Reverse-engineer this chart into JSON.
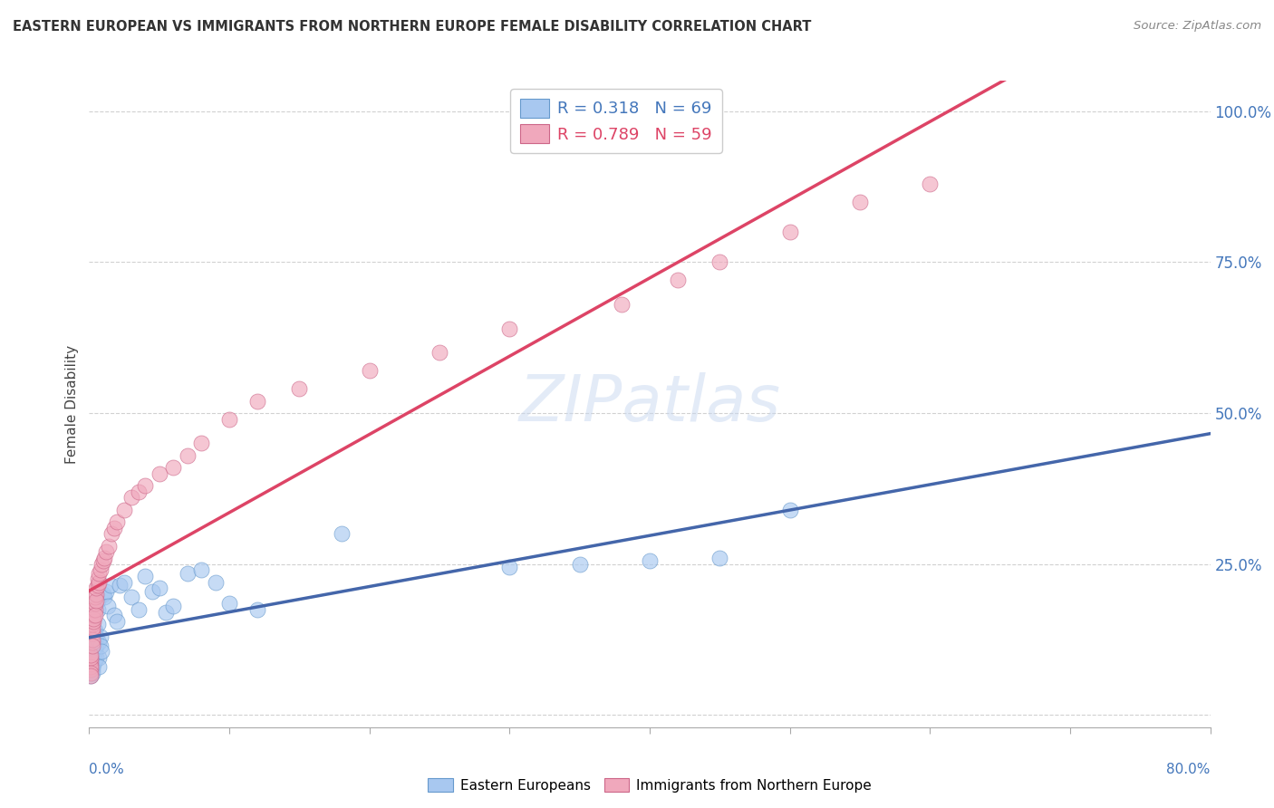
{
  "title": "EASTERN EUROPEAN VS IMMIGRANTS FROM NORTHERN EUROPE FEMALE DISABILITY CORRELATION CHART",
  "source": "Source: ZipAtlas.com",
  "ylabel": "Female Disability",
  "ytick_vals": [
    0.0,
    0.25,
    0.5,
    0.75,
    1.0
  ],
  "ytick_labels": [
    "",
    "25.0%",
    "50.0%",
    "75.0%",
    "100.0%"
  ],
  "xlim": [
    0.0,
    0.8
  ],
  "ylim": [
    -0.02,
    1.05
  ],
  "blue_color": "#A8C8F0",
  "pink_color": "#F0A8BC",
  "blue_edge_color": "#6699CC",
  "pink_edge_color": "#CC6688",
  "blue_line_color": "#4466AA",
  "pink_line_color": "#DD4466",
  "watermark": "ZIPatlas",
  "watermark_color": "#C8D8F0",
  "legend_blue_r": "R = 0.318",
  "legend_blue_n": "N = 69",
  "legend_pink_r": "R = 0.789",
  "legend_pink_n": "N = 59",
  "blue_R": 0.318,
  "pink_R": 0.789,
  "blue_N": 69,
  "pink_N": 59,
  "blue_scatter_x": [
    0.001,
    0.001,
    0.001,
    0.001,
    0.001,
    0.001,
    0.001,
    0.001,
    0.001,
    0.001,
    0.002,
    0.002,
    0.002,
    0.002,
    0.002,
    0.002,
    0.002,
    0.002,
    0.002,
    0.002,
    0.003,
    0.003,
    0.003,
    0.003,
    0.003,
    0.004,
    0.004,
    0.004,
    0.004,
    0.004,
    0.005,
    0.005,
    0.005,
    0.006,
    0.006,
    0.006,
    0.007,
    0.007,
    0.007,
    0.008,
    0.008,
    0.009,
    0.01,
    0.011,
    0.012,
    0.013,
    0.015,
    0.018,
    0.02,
    0.022,
    0.025,
    0.03,
    0.035,
    0.04,
    0.045,
    0.05,
    0.055,
    0.06,
    0.07,
    0.08,
    0.09,
    0.1,
    0.12,
    0.18,
    0.3,
    0.35,
    0.4,
    0.45,
    0.5
  ],
  "blue_scatter_y": [
    0.08,
    0.09,
    0.1,
    0.085,
    0.095,
    0.075,
    0.105,
    0.07,
    0.11,
    0.065,
    0.09,
    0.1,
    0.08,
    0.11,
    0.095,
    0.085,
    0.075,
    0.105,
    0.115,
    0.07,
    0.095,
    0.11,
    0.13,
    0.12,
    0.085,
    0.125,
    0.14,
    0.105,
    0.115,
    0.09,
    0.13,
    0.115,
    0.095,
    0.15,
    0.175,
    0.19,
    0.12,
    0.095,
    0.08,
    0.13,
    0.115,
    0.105,
    0.2,
    0.195,
    0.205,
    0.18,
    0.215,
    0.165,
    0.155,
    0.215,
    0.22,
    0.195,
    0.175,
    0.23,
    0.205,
    0.21,
    0.17,
    0.18,
    0.235,
    0.24,
    0.22,
    0.185,
    0.175,
    0.3,
    0.245,
    0.25,
    0.255,
    0.26,
    0.34
  ],
  "pink_scatter_x": [
    0.001,
    0.001,
    0.001,
    0.001,
    0.001,
    0.001,
    0.001,
    0.001,
    0.002,
    0.002,
    0.002,
    0.002,
    0.002,
    0.002,
    0.002,
    0.003,
    0.003,
    0.003,
    0.003,
    0.004,
    0.004,
    0.004,
    0.004,
    0.005,
    0.005,
    0.005,
    0.006,
    0.006,
    0.007,
    0.007,
    0.008,
    0.009,
    0.01,
    0.011,
    0.012,
    0.014,
    0.016,
    0.018,
    0.02,
    0.025,
    0.03,
    0.035,
    0.04,
    0.05,
    0.06,
    0.07,
    0.08,
    0.1,
    0.12,
    0.15,
    0.2,
    0.25,
    0.3,
    0.38,
    0.42,
    0.45,
    0.5,
    0.55,
    0.6
  ],
  "pink_scatter_y": [
    0.075,
    0.085,
    0.09,
    0.08,
    0.095,
    0.07,
    0.1,
    0.065,
    0.12,
    0.135,
    0.14,
    0.125,
    0.15,
    0.145,
    0.115,
    0.155,
    0.165,
    0.175,
    0.16,
    0.175,
    0.185,
    0.195,
    0.165,
    0.2,
    0.19,
    0.21,
    0.215,
    0.225,
    0.22,
    0.235,
    0.24,
    0.25,
    0.255,
    0.26,
    0.27,
    0.28,
    0.3,
    0.31,
    0.32,
    0.34,
    0.36,
    0.37,
    0.38,
    0.4,
    0.41,
    0.43,
    0.45,
    0.49,
    0.52,
    0.54,
    0.57,
    0.6,
    0.64,
    0.68,
    0.72,
    0.75,
    0.8,
    0.85,
    0.88
  ]
}
